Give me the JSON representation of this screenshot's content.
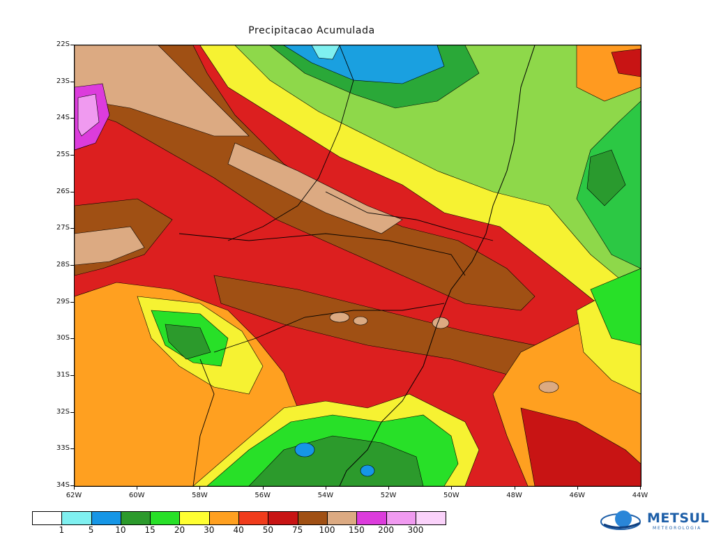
{
  "title": "Precipitacao Acumulada",
  "lat_labels": [
    "22S",
    "23S",
    "24S",
    "25S",
    "26S",
    "27S",
    "28S",
    "29S",
    "30S",
    "31S",
    "32S",
    "33S",
    "34S"
  ],
  "lon_labels": [
    "62W",
    "60W",
    "58W",
    "56W",
    "54W",
    "52W",
    "50W",
    "48W",
    "46W",
    "44W"
  ],
  "legend": {
    "labels": [
      "1",
      "5",
      "10",
      "15",
      "20",
      "30",
      "40",
      "50",
      "75",
      "100",
      "150",
      "200",
      "300"
    ],
    "colors": [
      "#ffffff",
      "#7ff0f0",
      "#1696e6",
      "#2c9a2c",
      "#28e028",
      "#ffff32",
      "#ffa020",
      "#f03c1c",
      "#c81414",
      "#a05014",
      "#dcaa82",
      "#dc3cdc",
      "#f09af0",
      "#fad2fa"
    ]
  },
  "logo": {
    "name": "METSUL",
    "subtitle": "METEOROLOGIA"
  }
}
